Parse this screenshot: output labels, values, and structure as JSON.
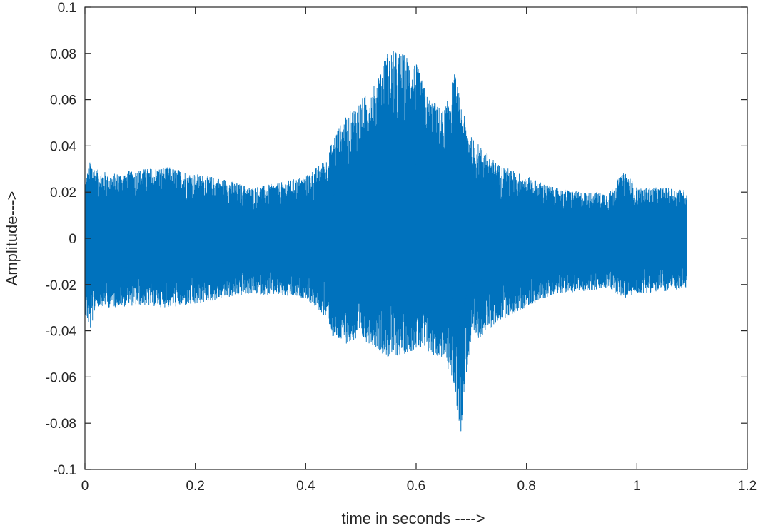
{
  "chart_data": {
    "type": "line",
    "xlabel": "time in seconds ---->",
    "ylabel": "Amplitude--->",
    "xlim": [
      0,
      1.2
    ],
    "ylim": [
      -0.1,
      0.1
    ],
    "xticks": [
      0,
      0.2,
      0.4,
      0.6,
      0.8,
      1,
      1.2
    ],
    "xtick_labels": [
      "0",
      "0.2",
      "0.4",
      "0.6",
      "0.8",
      "1",
      "1.2"
    ],
    "yticks": [
      -0.1,
      -0.08,
      -0.06,
      -0.04,
      -0.02,
      0,
      0.02,
      0.04,
      0.06,
      0.08,
      0.1
    ],
    "ytick_labels": [
      "-0.1",
      "-0.08",
      "-0.06",
      "-0.04",
      "-0.02",
      "0",
      "0.02",
      "0.04",
      "0.06",
      "0.08",
      "0.1"
    ],
    "grid": false,
    "box": true,
    "series": [
      {
        "color": "#0072BD",
        "x": [
          0,
          0.01,
          0.02,
          0.05,
          0.1,
          0.15,
          0.2,
          0.25,
          0.3,
          0.35,
          0.4,
          0.44,
          0.45,
          0.48,
          0.5,
          0.52,
          0.55,
          0.58,
          0.6,
          0.62,
          0.65,
          0.67,
          0.68,
          0.69,
          0.7,
          0.75,
          0.8,
          0.85,
          0.9,
          0.95,
          0.97,
          0.98,
          1.0,
          1.05,
          1.09
        ],
        "upper": [
          0.025,
          0.034,
          0.03,
          0.028,
          0.03,
          0.031,
          0.028,
          0.026,
          0.022,
          0.024,
          0.027,
          0.035,
          0.045,
          0.055,
          0.06,
          0.065,
          0.082,
          0.08,
          0.076,
          0.062,
          0.055,
          0.072,
          0.06,
          0.05,
          0.044,
          0.032,
          0.027,
          0.022,
          0.02,
          0.02,
          0.027,
          0.029,
          0.022,
          0.022,
          0.021
        ],
        "lower": [
          -0.033,
          -0.04,
          -0.03,
          -0.03,
          -0.029,
          -0.03,
          -0.029,
          -0.026,
          -0.024,
          -0.025,
          -0.026,
          -0.035,
          -0.044,
          -0.046,
          -0.044,
          -0.046,
          -0.052,
          -0.05,
          -0.048,
          -0.05,
          -0.052,
          -0.065,
          -0.087,
          -0.06,
          -0.046,
          -0.036,
          -0.03,
          -0.024,
          -0.023,
          -0.022,
          -0.025,
          -0.026,
          -0.024,
          -0.023,
          -0.022
        ]
      }
    ]
  }
}
